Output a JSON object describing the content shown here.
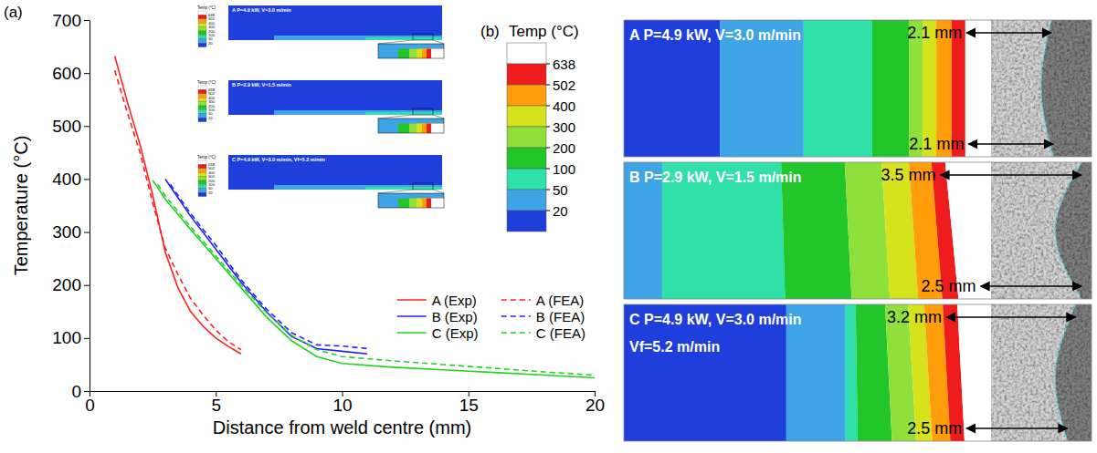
{
  "chart_data": [
    {
      "panel": "(a)",
      "type": "line",
      "x_label": "Distance from weld centre (mm)",
      "y_label": "Temperature (°C)",
      "xlim": [
        0,
        20
      ],
      "xticks": [
        0,
        5,
        10,
        15,
        20
      ],
      "ylim": [
        0,
        700
      ],
      "yticks": [
        0,
        100,
        200,
        300,
        400,
        500,
        600,
        700
      ],
      "legend": "lower right",
      "series": [
        {
          "name": "A (Exp)",
          "color": "#ff1f1f",
          "line_style": "solid",
          "x": [
            1.0,
            1.5,
            2.0,
            2.5,
            3.0,
            3.5,
            4.0,
            4.5,
            5.0,
            5.5,
            6.0
          ],
          "values": [
            632,
            545,
            465,
            370,
            262,
            195,
            150,
            122,
            100,
            84,
            70
          ]
        },
        {
          "name": "A (FEA)",
          "color": "#ff1f1f",
          "line_style": "dashed",
          "x": [
            1.0,
            1.5,
            2.0,
            2.5,
            3.0,
            3.5,
            4.0,
            4.5,
            5.0,
            5.5,
            6.0
          ],
          "values": [
            605,
            525,
            450,
            355,
            270,
            220,
            175,
            143,
            115,
            93,
            78
          ]
        },
        {
          "name": "B (Exp)",
          "color": "#2121ff",
          "line_style": "solid",
          "x": [
            3.0,
            4,
            5,
            6,
            7,
            8,
            9,
            10,
            11
          ],
          "values": [
            400,
            330,
            268,
            205,
            150,
            103,
            80,
            75,
            70
          ]
        },
        {
          "name": "B (FEA)",
          "color": "#2121ff",
          "line_style": "dashed",
          "x": [
            3.2,
            4,
            5,
            6,
            7,
            8,
            9,
            10,
            11
          ],
          "values": [
            390,
            335,
            275,
            210,
            155,
            110,
            87,
            85,
            80
          ]
        },
        {
          "name": "C (Exp)",
          "color": "#21d321",
          "line_style": "solid",
          "x": [
            2.5,
            3,
            4,
            5,
            6,
            7,
            8,
            9,
            10,
            12,
            14,
            16,
            18,
            20
          ],
          "values": [
            398,
            362,
            305,
            250,
            195,
            140,
            95,
            65,
            52,
            45,
            40,
            35,
            30,
            25
          ]
        },
        {
          "name": "C (FEA)",
          "color": "#21d321",
          "line_style": "dashed",
          "x": [
            2.7,
            3,
            4,
            5,
            6,
            7,
            8,
            9,
            10,
            12,
            14,
            16,
            18,
            20
          ],
          "values": [
            390,
            368,
            310,
            255,
            200,
            148,
            105,
            78,
            65,
            57,
            50,
            43,
            36,
            30
          ]
        }
      ],
      "insets": [
        {
          "title": "A P=4.9 kW, V=3.0 m/min"
        },
        {
          "title": "B P=2.9 kW, V=1.5 m/min"
        },
        {
          "title": "C P=4.9 kW, V=3.0 m/min, Vf=5.2 m/min"
        }
      ],
      "colorbar": {
        "title": "Temp (°C)",
        "ticks": [
          20,
          50,
          100,
          200,
          300,
          400,
          502,
          638
        ],
        "colors": [
          "#1f3fdc",
          "#3fa4e6",
          "#2fe0a8",
          "#22c52a",
          "#8fe03a",
          "#d6e21c",
          "#ff9d0a",
          "#ee1c1c",
          "#ffffff"
        ]
      }
    },
    {
      "panel": "(b)",
      "type": "contour",
      "xlim": [
        0,
        11.6
      ],
      "colorbar": {
        "title": "Temp (°C)",
        "ticks": [
          20,
          50,
          100,
          200,
          300,
          400,
          502,
          638
        ],
        "colors": [
          "#1f3fdc",
          "#3fa4e6",
          "#2fe0a8",
          "#22c52a",
          "#8fe03a",
          "#d6e21c",
          "#ff9d0a",
          "#ee1c1c",
          "#ffffff"
        ]
      },
      "strips": [
        {
          "title_lines": [
            "A P=4.9 kW, V=3.0 m/min"
          ],
          "isotherms_top": [
            2.38,
            4.46,
            6.16,
            7.07,
            7.41,
            7.75,
            8.13,
            8.47
          ],
          "isotherms_bottom": [
            2.38,
            4.46,
            6.16,
            7.07,
            7.41,
            7.75,
            8.13,
            8.47
          ],
          "fusion_boundary": [
            10.6,
            10.35,
            10.65
          ],
          "widths": [
            {
              "value": 2.1,
              "label": "2.1 mm"
            },
            {
              "value": 2.1,
              "label": "2.1 mm"
            }
          ]
        },
        {
          "title_lines": [
            "B P=2.9 kW, V=1.5 m/min"
          ],
          "isotherms_top": [
            -0.3,
            0.95,
            3.9,
            5.48,
            6.39,
            7.07,
            7.63,
            7.97
          ],
          "isotherms_bottom": [
            -0.3,
            0.95,
            4.0,
            5.65,
            6.6,
            7.3,
            7.9,
            8.3
          ],
          "fusion_boundary": [
            11.35,
            10.7,
            11.35
          ],
          "widths": [
            {
              "value": 3.5,
              "label": "3.5 mm"
            },
            {
              "value": 2.5,
              "label": "2.5 mm"
            }
          ]
        },
        {
          "title_lines": [
            "C P=4.9 kW, V=3.0 m/min",
            "Vf=5.2 m/min"
          ],
          "isotherms_top": [
            4.03,
            5.5,
            5.75,
            6.48,
            7.05,
            7.45,
            7.91,
            8.27
          ],
          "isotherms_bottom": [
            4.03,
            5.5,
            5.8,
            6.65,
            7.25,
            7.65,
            8.1,
            8.45
          ],
          "fusion_boundary": [
            11.2,
            10.7,
            11.0
          ],
          "widths": [
            {
              "value": 3.2,
              "label": "3.2 mm"
            },
            {
              "value": 2.5,
              "label": "2.5 mm"
            }
          ]
        }
      ]
    }
  ]
}
